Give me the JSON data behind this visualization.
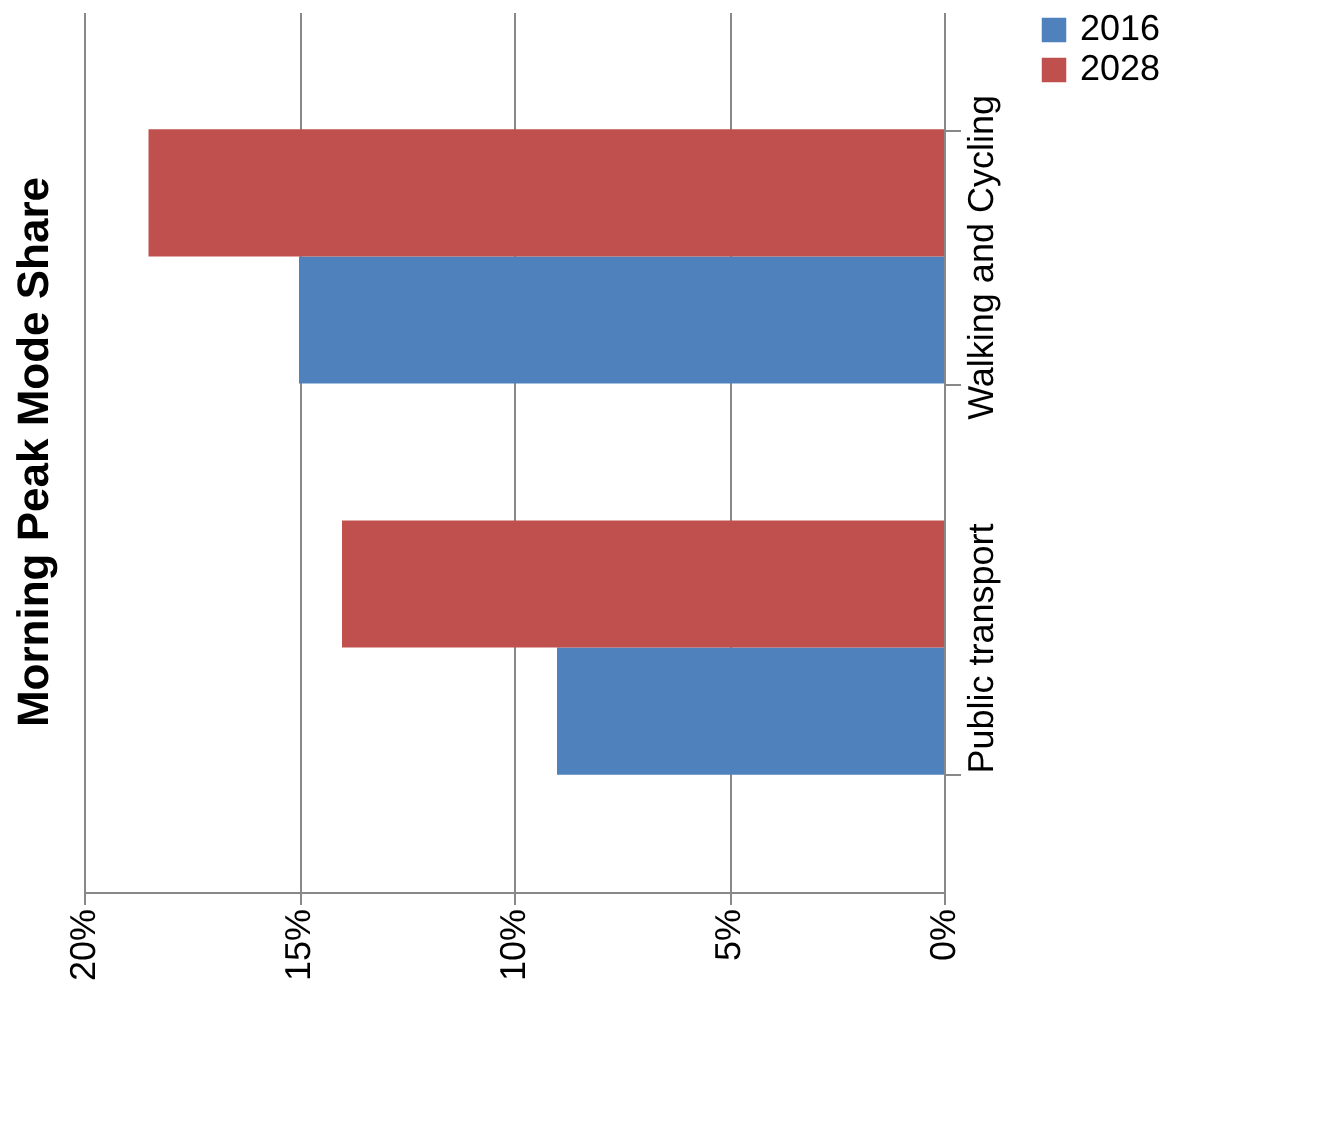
{
  "chart_data": {
    "type": "bar",
    "title": "Morning Peak Mode Share",
    "orientation": "horizontal",
    "categories": [
      "Walking and Cycling",
      "Public transport"
    ],
    "series": [
      {
        "name": "2016",
        "color": "#4f81bd",
        "values": [
          15,
          9
        ]
      },
      {
        "name": "2028",
        "color": "#c0504d",
        "values": [
          18.5,
          14
        ]
      }
    ],
    "xlim": [
      20,
      0
    ],
    "xticks": [
      {
        "value": 20,
        "label": "20%"
      },
      {
        "value": 15,
        "label": "15%"
      },
      {
        "value": 10,
        "label": "10%"
      },
      {
        "value": 5,
        "label": "5%"
      },
      {
        "value": 0,
        "label": "0%"
      }
    ],
    "grid": "x",
    "legend": "right"
  }
}
